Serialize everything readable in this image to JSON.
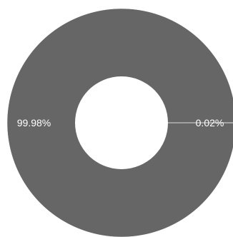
{
  "chart_data": {
    "type": "pie",
    "variant": "donut",
    "title": "",
    "slices": [
      {
        "label": "99.98%",
        "value": 99.98,
        "color": "#666666"
      },
      {
        "label": "0.02%",
        "value": 0.02,
        "color": "#999999"
      }
    ]
  }
}
